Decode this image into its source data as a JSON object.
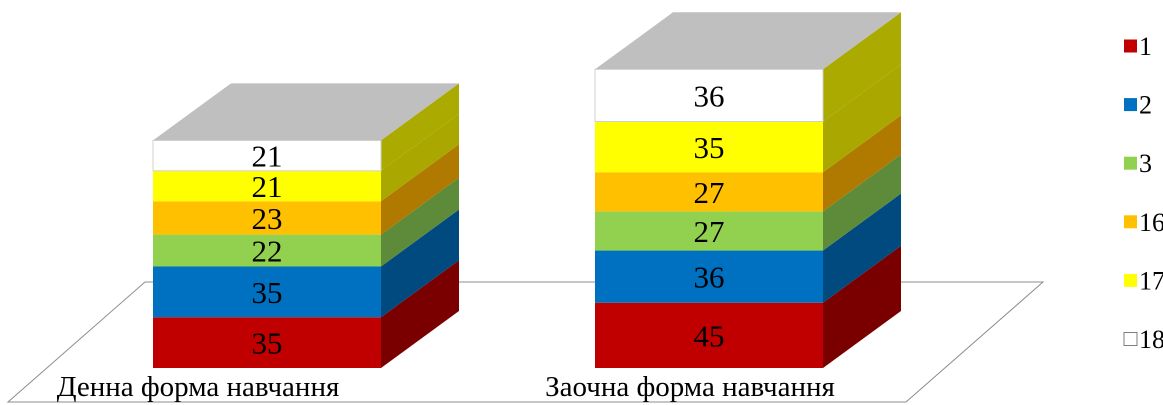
{
  "chart_data": {
    "type": "bar",
    "stacked": true,
    "three_d": true,
    "categories": [
      "Денна форма навчання",
      "Заочна форма навчання"
    ],
    "series": [
      {
        "name": "1",
        "values": [
          35,
          45
        ],
        "color": "#C00000",
        "side_color": "#7A0000"
      },
      {
        "name": "2",
        "values": [
          35,
          36
        ],
        "color": "#0070C0",
        "side_color": "#004A80"
      },
      {
        "name": "3",
        "values": [
          22,
          27
        ],
        "color": "#92D050",
        "side_color": "#5E8B3A"
      },
      {
        "name": "16",
        "values": [
          23,
          27
        ],
        "color": "#FFC000",
        "side_color": "#B07A00"
      },
      {
        "name": "17",
        "values": [
          21,
          35
        ],
        "color": "#FFFF00",
        "side_color": "#AAA800"
      },
      {
        "name": "18",
        "values": [
          21,
          36
        ],
        "color": "#FFFFFF",
        "side_color": "#AAAA00"
      }
    ],
    "data_labels": true,
    "legend_position": "right",
    "top_face_color": "#BFBFBF",
    "xlabel": "",
    "ylabel": ""
  }
}
